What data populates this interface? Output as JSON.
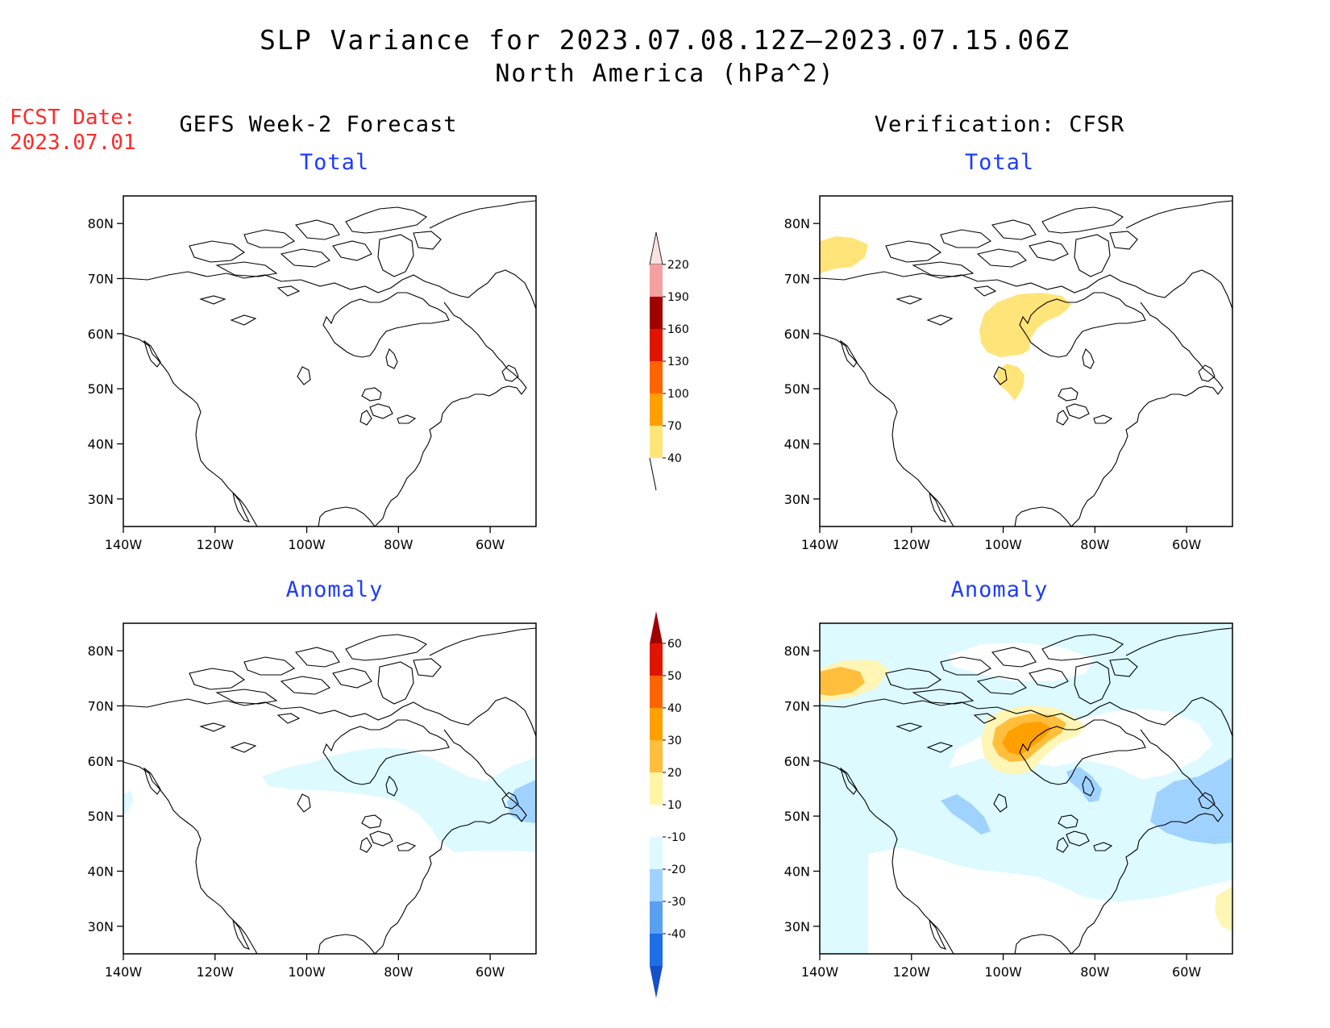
{
  "header": {
    "title_line1": "SLP Variance for 2023.07.08.12Z–2023.07.15.06Z",
    "title_line2": "North America (hPa^2)",
    "fcst_label": "FCST Date:",
    "fcst_date": "2023.07.01"
  },
  "columns": {
    "left_title": "GEFS Week-2 Forecast",
    "right_title": "Verification: CFSR"
  },
  "panels": {
    "top_left_title": "Total",
    "top_right_title": "Total",
    "bottom_left_title": "Anomaly",
    "bottom_right_title": "Anomaly"
  },
  "axes": {
    "lat_labels": [
      "80N",
      "70N",
      "60N",
      "50N",
      "40N",
      "30N"
    ],
    "lon_labels": [
      "140W",
      "120W",
      "100W",
      "80W",
      "60W"
    ],
    "lat_values": [
      80,
      70,
      60,
      50,
      40,
      30
    ],
    "lon_values": [
      -140,
      -120,
      -100,
      -80,
      -60
    ],
    "lat_range": [
      25,
      85
    ],
    "lon_range": [
      -140,
      -50
    ]
  },
  "colorbar_total": {
    "labels": [
      "220",
      "190",
      "160",
      "130",
      "100",
      "70",
      "40"
    ],
    "colors": [
      "#fde0e0",
      "#f4a0a0",
      "#a00000",
      "#e01400",
      "#ff6400",
      "#ffa000",
      "#ffe47a"
    ]
  },
  "colorbar_anomaly": {
    "labels": [
      "60",
      "50",
      "40",
      "30",
      "20",
      "10",
      "-10",
      "-20",
      "-30",
      "-40"
    ],
    "colors": [
      "#a00000",
      "#e01400",
      "#ff6400",
      "#ffa000",
      "#ffbe3c",
      "#fff5a6",
      "#ffffff",
      "#dcfaff",
      "#a0d2ff",
      "#5aa0f0",
      "#1e6ee6",
      "#1450c8"
    ]
  },
  "fills": {
    "yellow": "#ffe47a",
    "cream": "#fff5b4",
    "orange": "#ffbe3c",
    "deep_orange": "#ffa000",
    "light_cyan": "#dcfaff",
    "light_blue": "#a0d2ff",
    "mid_blue": "#82beff"
  }
}
